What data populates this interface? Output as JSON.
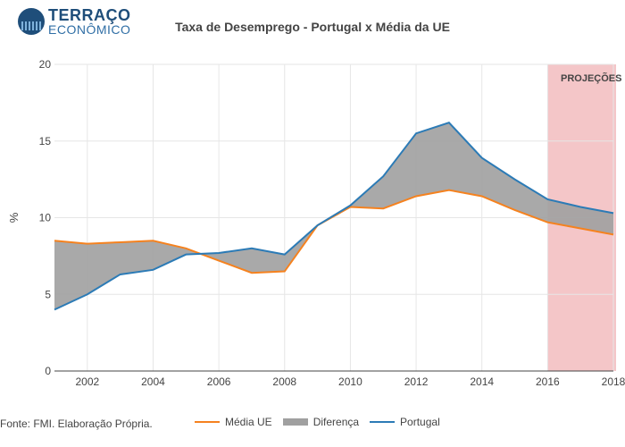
{
  "logo": {
    "line1": "TERRAÇO",
    "line2": "ECONÔMICO"
  },
  "source": "Fonte: FMI. Elaboração Própria.",
  "colors": {
    "media_ue": "#f5821f",
    "portugal": "#2c7bb6",
    "diferenca": "#a0a0a0",
    "projection": "#f4c6c8",
    "grid": "#e6e6e6"
  },
  "chart_data": {
    "type": "line",
    "title": "Taxa de Desemprego - Portugal x Média da UE",
    "xlabel": "",
    "ylabel": "%",
    "xlim": [
      2001,
      2018
    ],
    "ylim": [
      0,
      20
    ],
    "x_ticks": [
      2002,
      2004,
      2006,
      2008,
      2010,
      2012,
      2014,
      2016,
      2018
    ],
    "y_ticks": [
      0,
      5,
      10,
      15,
      20
    ],
    "grid": true,
    "legend_position": "bottom",
    "legend": [
      "Média UE",
      "Diferença",
      "Portugal"
    ],
    "x": [
      2001,
      2002,
      2003,
      2004,
      2005,
      2006,
      2007,
      2008,
      2009,
      2010,
      2011,
      2012,
      2013,
      2014,
      2015,
      2016,
      2017,
      2018
    ],
    "series": [
      {
        "name": "Média UE",
        "values": [
          8.5,
          8.3,
          8.4,
          8.5,
          8.0,
          7.2,
          6.4,
          6.5,
          9.5,
          10.7,
          10.6,
          11.4,
          11.8,
          11.4,
          10.5,
          9.7,
          9.3,
          8.9
        ]
      },
      {
        "name": "Portugal",
        "values": [
          4.0,
          5.0,
          6.3,
          6.6,
          7.6,
          7.7,
          8.0,
          7.6,
          9.5,
          10.8,
          12.7,
          15.5,
          16.2,
          13.9,
          12.5,
          11.2,
          10.7,
          10.3
        ]
      }
    ],
    "annotations": [
      {
        "text": "PROJEÇÕES",
        "x_range": [
          2016,
          2018
        ]
      }
    ]
  }
}
